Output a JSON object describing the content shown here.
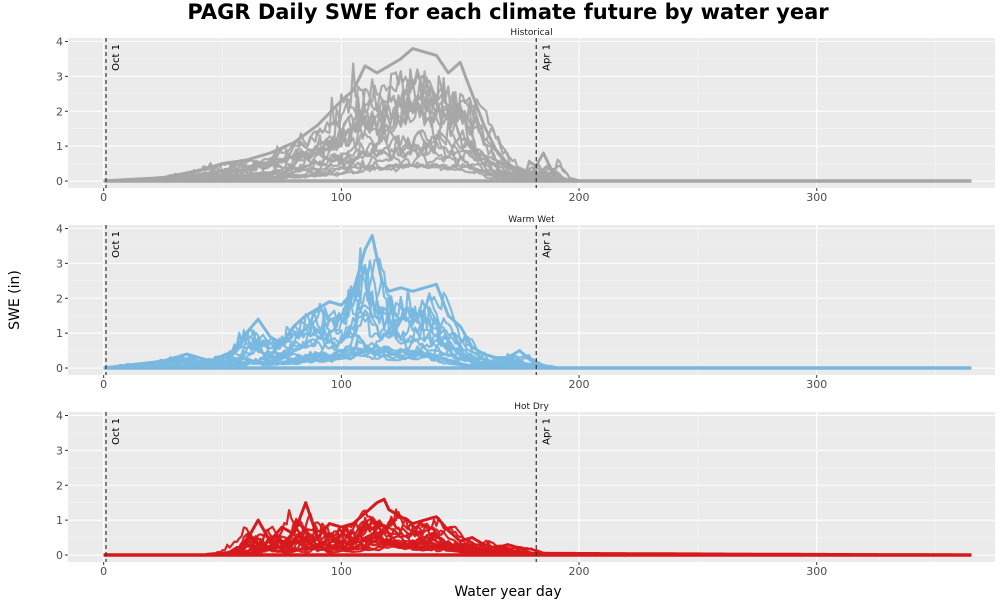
{
  "chart_data": {
    "type": "line",
    "title": "PAGR Daily SWE for each climate future by water year",
    "xlabel": "Water year day",
    "ylabel": "SWE (in)",
    "xlim": [
      -15,
      375
    ],
    "ylim": [
      -0.2,
      4.1
    ],
    "x_ticks": [
      0,
      100,
      200,
      300
    ],
    "y_ticks": [
      0,
      1,
      2,
      3,
      4
    ],
    "grid": true,
    "reference_lines": [
      {
        "x": 1,
        "label": "Oct 1"
      },
      {
        "x": 182,
        "label": "Apr 1"
      }
    ],
    "panels": [
      {
        "name": "Historical",
        "color": "#a6a6a6",
        "envelope": {
          "x": [
            0,
            25,
            40,
            50,
            60,
            70,
            80,
            90,
            100,
            105,
            110,
            115,
            120,
            125,
            130,
            135,
            140,
            145,
            150,
            155,
            160,
            165,
            170,
            175,
            180,
            185,
            190,
            195,
            365
          ],
          "y": [
            0,
            0.1,
            0.3,
            0.5,
            0.6,
            0.8,
            1.1,
            1.6,
            2.3,
            2.6,
            3.3,
            3.1,
            3.3,
            3.5,
            3.8,
            3.7,
            3.6,
            3.1,
            3.4,
            2.5,
            1.6,
            0.9,
            0.5,
            0.3,
            0.2,
            0.8,
            0.1,
            0,
            0
          ]
        }
      },
      {
        "name": "Warm Wet",
        "color": "#78b8e0",
        "envelope": {
          "x": [
            0,
            25,
            35,
            45,
            55,
            60,
            65,
            70,
            75,
            80,
            85,
            90,
            95,
            100,
            105,
            110,
            113,
            117,
            120,
            125,
            130,
            135,
            140,
            145,
            150,
            155,
            160,
            165,
            170,
            175,
            180,
            185,
            365
          ],
          "y": [
            0,
            0.2,
            0.4,
            0.2,
            0.5,
            1.0,
            1.4,
            0.9,
            0.7,
            1.2,
            1.5,
            1.7,
            1.9,
            1.8,
            2.2,
            3.4,
            3.8,
            2.5,
            2.2,
            2.3,
            2.2,
            2.3,
            2.4,
            1.5,
            1.2,
            0.6,
            0.4,
            0.3,
            0.3,
            0.5,
            0.2,
            0,
            0
          ]
        }
      },
      {
        "name": "Hot Dry",
        "color": "#d7191c",
        "envelope": {
          "x": [
            0,
            45,
            55,
            60,
            65,
            70,
            75,
            80,
            85,
            90,
            95,
            100,
            105,
            110,
            115,
            118,
            120,
            125,
            130,
            135,
            140,
            145,
            150,
            155,
            160,
            165,
            170,
            175,
            180,
            365
          ],
          "y": [
            0,
            0,
            0.1,
            0.4,
            1.0,
            0.4,
            0.8,
            0.6,
            1.5,
            0.5,
            0.9,
            0.8,
            0.9,
            1.2,
            1.5,
            1.6,
            1.3,
            1.1,
            0.9,
            1.0,
            1.1,
            0.7,
            0.4,
            0.5,
            0.3,
            0.2,
            0.3,
            0.2,
            0.05,
            0
          ]
        }
      }
    ]
  }
}
